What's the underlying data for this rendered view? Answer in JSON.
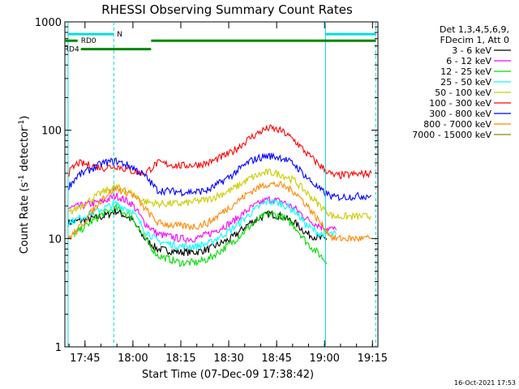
{
  "chart_data": {
    "type": "line",
    "title": "RHESSI Observing Summary Count Rates",
    "xlabel": "Start Time (07-Dec-09 17:38:42)",
    "ylabel_main": "Count Rate (s",
    "ylabel_sup1": "-1",
    "ylabel_mid": " detector",
    "ylabel_sup2": "-1",
    "ylabel_end": ")",
    "yscale": "log",
    "ylim": [
      1,
      1000
    ],
    "xlim_minutes": [
      0,
      98
    ],
    "x_ticks": [
      {
        "label": "17:45",
        "minute": 6.3
      },
      {
        "label": "18:00",
        "minute": 21.3
      },
      {
        "label": "18:15",
        "minute": 36.3
      },
      {
        "label": "18:30",
        "minute": 51.3
      },
      {
        "label": "18:45",
        "minute": 66.3
      },
      {
        "label": "19:00",
        "minute": 81.3
      },
      {
        "label": "19:15",
        "minute": 96.3
      }
    ],
    "y_ticks": [
      {
        "label": "1",
        "value": 1
      },
      {
        "label": "10",
        "value": 10
      },
      {
        "label": "100",
        "value": 100
      },
      {
        "label": "1000",
        "value": 1000
      }
    ],
    "legend_header": [
      "Det 1,3,4,5,6,9,",
      "FDecim 1, Att 0"
    ],
    "series": [
      {
        "name": "3 - 6 keV",
        "color": "#000000",
        "points": [
          [
            1,
            14
          ],
          [
            12,
            16
          ],
          [
            16,
            18
          ],
          [
            21,
            15
          ],
          [
            25,
            10
          ],
          [
            29,
            8
          ],
          [
            36,
            7.5
          ],
          [
            41,
            7.5
          ],
          [
            45,
            8
          ],
          [
            52,
            10
          ],
          [
            58,
            14
          ],
          [
            62,
            16
          ],
          [
            64,
            17
          ],
          [
            68,
            16
          ],
          [
            72,
            14
          ],
          [
            76,
            11
          ],
          [
            80,
            10
          ],
          [
            82,
            10
          ]
        ]
      },
      {
        "name": "6 - 12 keV",
        "color": "#ff00ff",
        "points": [
          [
            1,
            19
          ],
          [
            12,
            22
          ],
          [
            16,
            25
          ],
          [
            21,
            21
          ],
          [
            25,
            14
          ],
          [
            29,
            11
          ],
          [
            36,
            10
          ],
          [
            41,
            10
          ],
          [
            45,
            11
          ],
          [
            52,
            14
          ],
          [
            58,
            19
          ],
          [
            62,
            22
          ],
          [
            64,
            23
          ],
          [
            68,
            22
          ],
          [
            72,
            19
          ],
          [
            76,
            15
          ],
          [
            80,
            13
          ],
          [
            85,
            12
          ]
        ]
      },
      {
        "name": "12 - 25 keV",
        "color": "#00dd00",
        "points": [
          [
            3,
            11
          ],
          [
            12,
            17
          ],
          [
            16,
            19
          ],
          [
            21,
            16
          ],
          [
            25,
            10
          ],
          [
            29,
            7
          ],
          [
            36,
            6
          ],
          [
            41,
            6
          ],
          [
            45,
            6.5
          ],
          [
            52,
            9
          ],
          [
            58,
            13
          ],
          [
            62,
            16
          ],
          [
            64,
            17
          ],
          [
            68,
            16
          ],
          [
            72,
            13
          ],
          [
            76,
            9
          ],
          [
            80,
            7
          ],
          [
            82,
            6
          ]
        ]
      },
      {
        "name": "25 - 50 keV",
        "color": "#00ffff",
        "points": [
          [
            1,
            14
          ],
          [
            12,
            19
          ],
          [
            16,
            21
          ],
          [
            21,
            18
          ],
          [
            25,
            12
          ],
          [
            29,
            9.5
          ],
          [
            36,
            8.5
          ],
          [
            41,
            8.5
          ],
          [
            45,
            9
          ],
          [
            52,
            12
          ],
          [
            58,
            17
          ],
          [
            62,
            21
          ],
          [
            64,
            22
          ],
          [
            68,
            21
          ],
          [
            72,
            18
          ],
          [
            76,
            13
          ],
          [
            80,
            11
          ],
          [
            85,
            11
          ]
        ]
      },
      {
        "name": "50 - 100 keV",
        "color": "#cccc00",
        "points": [
          [
            1,
            17
          ],
          [
            12,
            27
          ],
          [
            16,
            30
          ],
          [
            21,
            26
          ],
          [
            25,
            22
          ],
          [
            29,
            21
          ],
          [
            36,
            21
          ],
          [
            41,
            22
          ],
          [
            45,
            23
          ],
          [
            52,
            28
          ],
          [
            58,
            36
          ],
          [
            62,
            40
          ],
          [
            64,
            41
          ],
          [
            68,
            39
          ],
          [
            72,
            34
          ],
          [
            76,
            26
          ],
          [
            80,
            20
          ],
          [
            84,
            16
          ],
          [
            96,
            16
          ]
        ]
      },
      {
        "name": "100 - 300 keV",
        "color": "#ff0000",
        "points": [
          [
            1,
            40
          ],
          [
            4,
            50
          ],
          [
            12,
            45
          ],
          [
            16,
            47
          ],
          [
            21,
            42
          ],
          [
            25,
            40
          ],
          [
            29,
            50
          ],
          [
            36,
            47
          ],
          [
            41,
            48
          ],
          [
            45,
            50
          ],
          [
            52,
            62
          ],
          [
            58,
            85
          ],
          [
            62,
            100
          ],
          [
            64,
            105
          ],
          [
            68,
            98
          ],
          [
            72,
            80
          ],
          [
            76,
            60
          ],
          [
            80,
            47
          ],
          [
            84,
            38
          ],
          [
            96,
            40
          ]
        ]
      },
      {
        "name": "300 - 800 keV",
        "color": "#0000ff",
        "points": [
          [
            1,
            30
          ],
          [
            4,
            38
          ],
          [
            12,
            50
          ],
          [
            16,
            52
          ],
          [
            21,
            46
          ],
          [
            25,
            38
          ],
          [
            29,
            28
          ],
          [
            36,
            27
          ],
          [
            41,
            27
          ],
          [
            45,
            28
          ],
          [
            52,
            38
          ],
          [
            58,
            52
          ],
          [
            62,
            57
          ],
          [
            64,
            58
          ],
          [
            68,
            56
          ],
          [
            72,
            48
          ],
          [
            76,
            36
          ],
          [
            80,
            28
          ],
          [
            84,
            24
          ],
          [
            96,
            25
          ]
        ]
      },
      {
        "name": "800 - 7000 keV",
        "color": "#ff8800",
        "points": [
          [
            1,
            10
          ],
          [
            4,
            12
          ],
          [
            12,
            24
          ],
          [
            16,
            29
          ],
          [
            21,
            26
          ],
          [
            25,
            19
          ],
          [
            29,
            14
          ],
          [
            36,
            13
          ],
          [
            41,
            13
          ],
          [
            45,
            14
          ],
          [
            52,
            20
          ],
          [
            58,
            27
          ],
          [
            62,
            31
          ],
          [
            64,
            32
          ],
          [
            68,
            31
          ],
          [
            72,
            27
          ],
          [
            76,
            20
          ],
          [
            80,
            14
          ],
          [
            84,
            10
          ],
          [
            96,
            10
          ]
        ]
      },
      {
        "name": "7000 - 15000 keV",
        "color": "#888800",
        "points": []
      }
    ],
    "cyan_vlines_minutes": [
      1,
      81.6
    ],
    "dashed_vlines_minutes": [
      15.3,
      97.3
    ],
    "bars": [
      {
        "label": "N",
        "color": "#00dddd",
        "y": 770,
        "segments": [
          [
            1,
            15.3
          ],
          [
            81.6,
            97.3
          ]
        ]
      },
      {
        "label": "RD0",
        "color": "#008800",
        "y": 670,
        "segments": [
          [
            0,
            4
          ],
          [
            27,
            97.3
          ]
        ]
      },
      {
        "label": "RD4",
        "color": "#008800",
        "y": 560,
        "segments": [
          [
            5,
            27
          ]
        ]
      }
    ],
    "footer": "16-Oct-2021 17:53"
  }
}
